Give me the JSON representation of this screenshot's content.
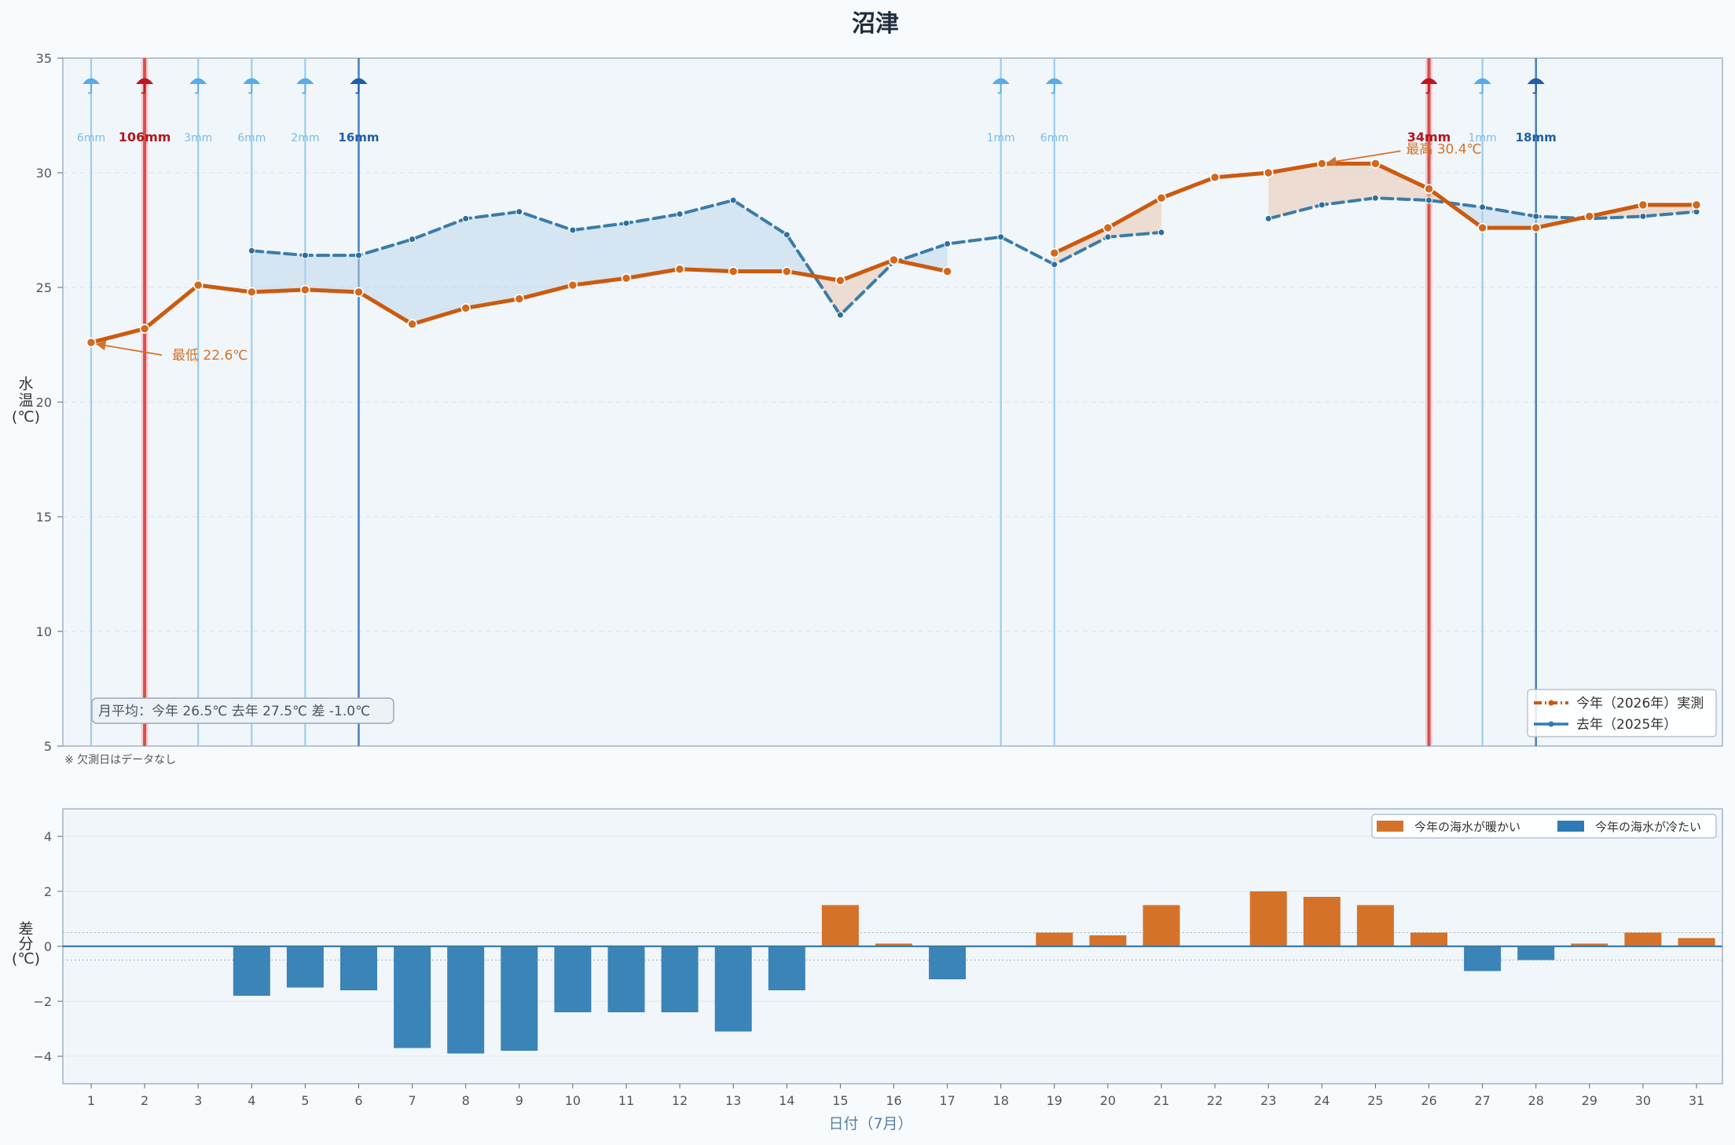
{
  "chart_data": {
    "type": "line",
    "title": "沼津",
    "xlabel": "日付（7月）",
    "ylabel_chars": [
      "水",
      "温",
      "(℃)"
    ],
    "ylim": [
      5,
      35
    ],
    "yticks": [
      5,
      10,
      15,
      20,
      25,
      30,
      35
    ],
    "x": [
      1,
      2,
      3,
      4,
      5,
      6,
      7,
      8,
      9,
      10,
      11,
      12,
      13,
      14,
      15,
      16,
      17,
      18,
      19,
      20,
      21,
      22,
      23,
      24,
      25,
      26,
      27,
      28,
      29,
      30,
      31
    ],
    "series": [
      {
        "name": "今年（2026年）実測",
        "color": "#cc5a0e",
        "values": [
          22.6,
          23.2,
          25.1,
          24.8,
          24.9,
          24.8,
          23.4,
          24.1,
          24.5,
          25.1,
          25.4,
          25.8,
          25.7,
          25.7,
          25.3,
          26.2,
          25.7,
          null,
          26.5,
          27.6,
          28.9,
          29.8,
          30.0,
          30.4,
          30.4,
          29.3,
          27.6,
          27.6,
          28.1,
          28.6,
          28.6
        ]
      },
      {
        "name": "去年（2025年）",
        "color": "#3a7ca8",
        "values": [
          null,
          null,
          null,
          26.6,
          26.4,
          26.4,
          27.1,
          28.0,
          28.3,
          27.5,
          27.8,
          28.2,
          28.8,
          27.3,
          23.8,
          26.1,
          26.9,
          27.2,
          26.0,
          27.2,
          27.4,
          null,
          28.0,
          28.6,
          28.9,
          28.8,
          28.5,
          28.1,
          28.0,
          28.1,
          28.3
        ]
      }
    ],
    "grid": true,
    "legend_position": "bottom-right",
    "rain": [
      {
        "day": 1,
        "label": "6mm",
        "level": "light"
      },
      {
        "day": 2,
        "label": "106mm",
        "level": "heavy"
      },
      {
        "day": 3,
        "label": "3mm",
        "level": "light"
      },
      {
        "day": 4,
        "label": "6mm",
        "level": "light"
      },
      {
        "day": 5,
        "label": "2mm",
        "level": "light"
      },
      {
        "day": 6,
        "label": "16mm",
        "level": "medium"
      },
      {
        "day": 18,
        "label": "1mm",
        "level": "light"
      },
      {
        "day": 19,
        "label": "6mm",
        "level": "light"
      },
      {
        "day": 26,
        "label": "34mm",
        "level": "heavy"
      },
      {
        "day": 27,
        "label": "1mm",
        "level": "light"
      },
      {
        "day": 28,
        "label": "18mm",
        "level": "medium"
      }
    ],
    "annotations": {
      "min_label": "最低 22.6℃",
      "min_day": 1,
      "min_value": 22.6,
      "max_label": "最高 30.4℃",
      "max_day": 24,
      "max_value": 30.4
    },
    "summary": "月平均：今年 26.5℃  去年 27.5℃  差 -1.0℃",
    "missing_note": "※ 欠測日はデータなし",
    "diff_chart": {
      "type": "bar",
      "ylabel_chars": [
        "差",
        "分",
        "(℃)"
      ],
      "ylim": [
        -5,
        5
      ],
      "yticks": [
        -4,
        -2,
        0,
        2,
        4
      ],
      "values": [
        null,
        null,
        null,
        -1.8,
        -1.5,
        -1.6,
        -3.7,
        -3.9,
        -3.8,
        -2.4,
        -2.4,
        -2.4,
        -3.1,
        -1.6,
        1.5,
        0.1,
        -1.2,
        null,
        0.5,
        0.4,
        1.5,
        null,
        2.0,
        1.8,
        1.5,
        0.5,
        -0.9,
        -0.5,
        0.1,
        0.5,
        0.3
      ],
      "legend": [
        {
          "label": "今年の海水が暖かい",
          "color": "#d4722a"
        },
        {
          "label": "今年の海水が冷たい",
          "color": "#2f7bb5"
        }
      ]
    }
  }
}
